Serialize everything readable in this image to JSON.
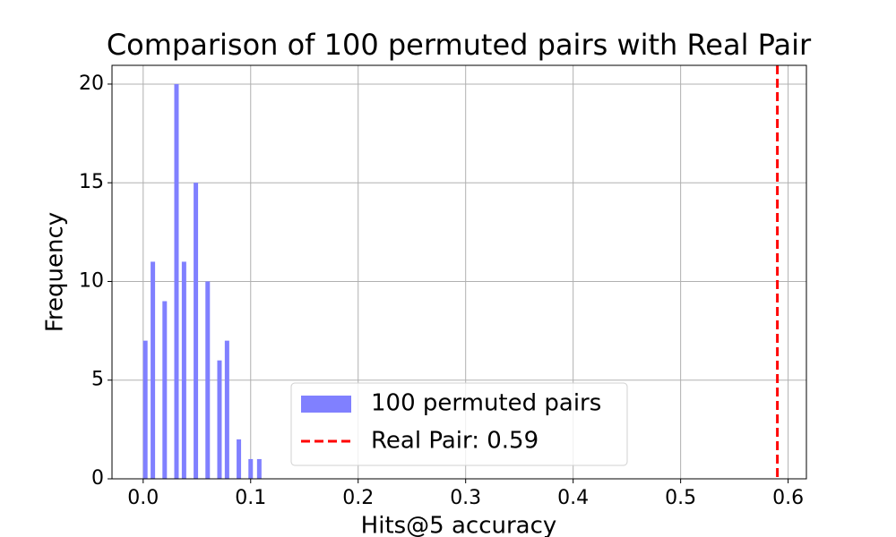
{
  "chart_data": {
    "type": "bar",
    "title": "Comparison of 100 permuted pairs with Real Pair",
    "xlabel": "Hits@5 accuracy",
    "ylabel": "Frequency",
    "x": [
      0.002,
      0.009,
      0.02,
      0.031,
      0.038,
      0.049,
      0.06,
      0.071,
      0.078,
      0.089,
      0.1,
      0.108
    ],
    "series": [
      {
        "name": "100 permuted pairs",
        "color": "#8080ff",
        "values": [
          7,
          11,
          9,
          20,
          11,
          15,
          10,
          6,
          7,
          2,
          1,
          1
        ]
      }
    ],
    "vline": {
      "name": "Real Pair: 0.59",
      "value": 0.59,
      "color": "#ff0000"
    },
    "xlim": [
      -0.029,
      0.617
    ],
    "ylim": [
      0,
      20.95
    ],
    "xticks": [
      {
        "value": 0,
        "label": "0.0"
      },
      0.1,
      0.2,
      0.3,
      0.4,
      0.5,
      0.6
    ],
    "yticks": [
      0,
      5,
      10,
      15,
      20
    ],
    "grid": true,
    "legend": "lower center"
  }
}
